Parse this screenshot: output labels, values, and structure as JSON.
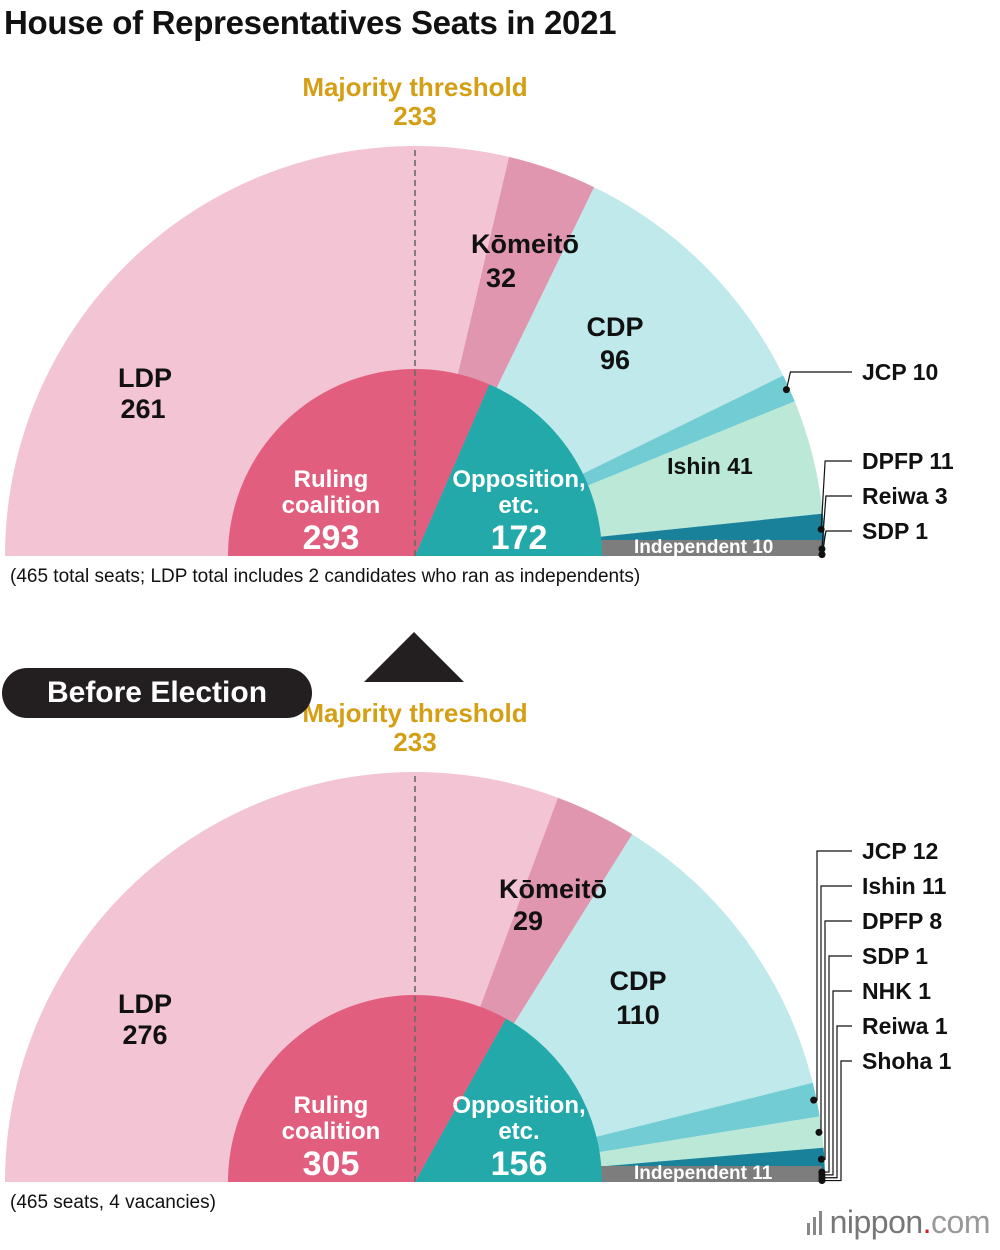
{
  "title": "House of Representatives Seats in 2021",
  "before_label": "Before Election",
  "brand": {
    "name": "nippon",
    "dot": ".",
    "tld": "com"
  },
  "colors": {
    "LDP": "#f3c4d3",
    "Komeito": "#e196b0",
    "CDP": "#bfe9ea",
    "JCP": "#72ccd3",
    "Ishin": "#bbe8d7",
    "DPFP": "#19829a",
    "Reiwa": "#a9d6ee",
    "SDP": "#e7d99b",
    "NHK": "#d6ded6",
    "Shoha": "#c5d9ea",
    "Independent": "#7d7d7d",
    "ruling": "#e25e7f",
    "opposition": "#23a9aa",
    "threshold": "#d49f14"
  },
  "chart_data": [
    {
      "type": "pie",
      "name": "2021",
      "total_seats": 465,
      "majority_threshold": 233,
      "threshold_label": "Majority threshold",
      "note": "(465 total seats; LDP total includes 2 candidates who ran as independents)",
      "slices": [
        {
          "label": "LDP",
          "value": 261
        },
        {
          "label": "Kōmeitō",
          "value": 32
        },
        {
          "label": "CDP",
          "value": 96
        },
        {
          "label": "JCP",
          "value": 10
        },
        {
          "label": "Ishin",
          "value": 41
        },
        {
          "label": "DPFP",
          "value": 11
        },
        {
          "label": "Reiwa",
          "value": 3
        },
        {
          "label": "SDP",
          "value": 1
        },
        {
          "label": "Independent",
          "value": 10
        }
      ],
      "inner": [
        {
          "label_lines": [
            "Ruling",
            "coalition"
          ],
          "value": 293
        },
        {
          "label_lines": [
            "Opposition,",
            "etc."
          ],
          "value": 172
        }
      ]
    },
    {
      "type": "pie",
      "name": "Before Election",
      "total_seats": 465,
      "vacancies": 4,
      "majority_threshold": 233,
      "threshold_label": "Majority threshold",
      "note": "(465 seats, 4 vacancies)",
      "slices": [
        {
          "label": "LDP",
          "value": 276
        },
        {
          "label": "Kōmeitō",
          "value": 29
        },
        {
          "label": "CDP",
          "value": 110
        },
        {
          "label": "JCP",
          "value": 12
        },
        {
          "label": "Ishin",
          "value": 11
        },
        {
          "label": "DPFP",
          "value": 8
        },
        {
          "label": "SDP",
          "value": 1
        },
        {
          "label": "NHK",
          "value": 1
        },
        {
          "label": "Reiwa",
          "value": 1
        },
        {
          "label": "Shoha",
          "value": 1
        },
        {
          "label": "Independent",
          "value": 11
        }
      ],
      "inner": [
        {
          "label_lines": [
            "Ruling",
            "coalition"
          ],
          "value": 305
        },
        {
          "label_lines": [
            "Opposition,",
            "etc."
          ],
          "value": 156
        }
      ]
    }
  ]
}
